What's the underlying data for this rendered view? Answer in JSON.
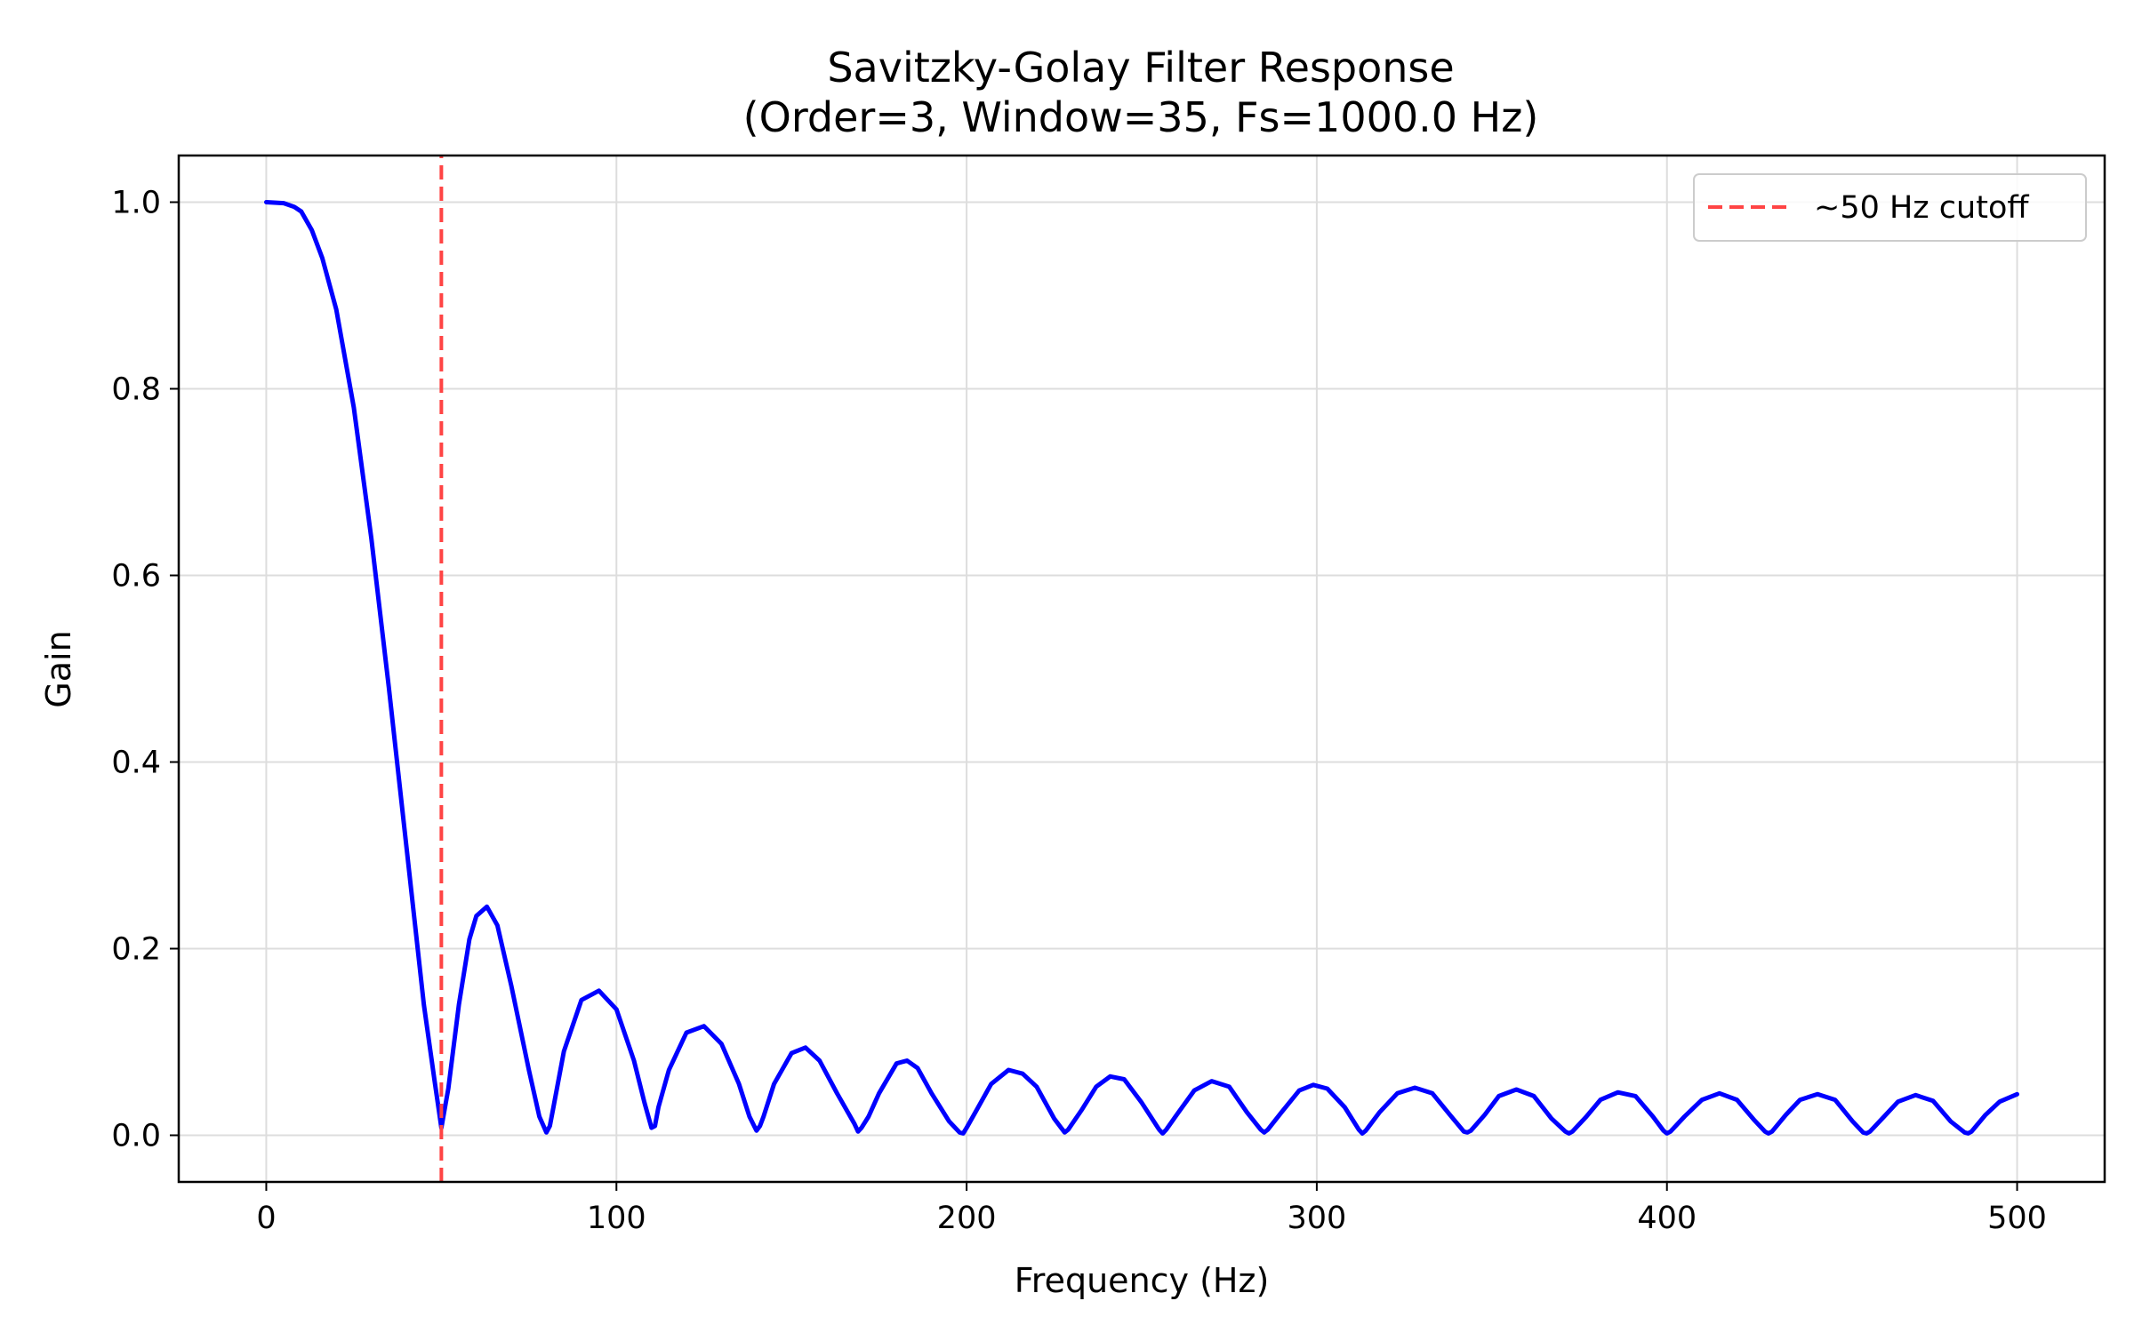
{
  "chart_data": {
    "type": "line",
    "title": "Savitzky-Golay Filter Response",
    "subtitle": "(Order=3, Window=35, Fs=1000.0 Hz)",
    "xlabel": "Frequency (Hz)",
    "ylabel": "Gain",
    "xlim": [
      -25,
      525
    ],
    "ylim": [
      -0.05,
      1.05
    ],
    "xticks": [
      0,
      100,
      200,
      300,
      400,
      500
    ],
    "xtick_labels": [
      "0",
      "100",
      "200",
      "300",
      "400",
      "500"
    ],
    "yticks": [
      0.0,
      0.2,
      0.4,
      0.6,
      0.8,
      1.0
    ],
    "ytick_labels": [
      "0.0",
      "0.2",
      "0.4",
      "0.6",
      "0.8",
      "1.0"
    ],
    "grid": true,
    "legend_position": "top-right",
    "series": [
      {
        "color": "#0000ff",
        "style": "solid",
        "x": [
          0,
          5,
          8,
          10,
          13,
          16,
          20,
          25,
          30,
          35,
          40,
          45,
          48,
          50,
          52,
          55,
          58,
          60,
          63,
          66,
          70,
          75,
          78,
          80,
          81,
          82,
          85,
          90,
          95,
          100,
          105,
          108,
          110,
          111,
          112,
          115,
          120,
          125,
          130,
          135,
          138,
          140,
          141,
          142,
          145,
          150,
          154,
          158,
          163,
          168,
          169,
          170,
          172,
          175,
          180,
          183,
          186,
          190,
          195,
          198,
          199,
          200,
          203,
          207,
          212,
          216,
          220,
          225,
          227,
          228,
          229,
          233,
          237,
          241,
          245,
          250,
          255,
          256,
          257,
          260,
          265,
          270,
          275,
          280,
          284,
          285,
          286,
          290,
          295,
          299,
          303,
          308,
          312,
          313,
          314,
          318,
          323,
          328,
          333,
          338,
          342,
          343,
          344,
          348,
          352,
          357,
          362,
          367,
          371,
          372,
          373,
          377,
          381,
          386,
          391,
          396,
          399,
          400,
          401,
          405,
          410,
          415,
          420,
          425,
          428,
          429,
          430,
          434,
          438,
          443,
          448,
          453,
          456,
          457,
          458,
          462,
          466,
          471,
          476,
          481,
          485,
          486,
          487,
          491,
          495,
          500
        ],
        "y": [
          1.0,
          0.999,
          0.995,
          0.99,
          0.97,
          0.94,
          0.885,
          0.78,
          0.64,
          0.48,
          0.31,
          0.14,
          0.06,
          0.008,
          0.05,
          0.14,
          0.21,
          0.235,
          0.245,
          0.225,
          0.16,
          0.07,
          0.02,
          0.003,
          0.01,
          0.03,
          0.09,
          0.145,
          0.155,
          0.135,
          0.08,
          0.035,
          0.008,
          0.01,
          0.03,
          0.07,
          0.11,
          0.117,
          0.098,
          0.055,
          0.02,
          0.005,
          0.01,
          0.02,
          0.055,
          0.088,
          0.094,
          0.08,
          0.045,
          0.012,
          0.004,
          0.008,
          0.02,
          0.045,
          0.077,
          0.08,
          0.072,
          0.045,
          0.015,
          0.003,
          0.002,
          0.008,
          0.028,
          0.055,
          0.07,
          0.066,
          0.052,
          0.018,
          0.008,
          0.003,
          0.006,
          0.028,
          0.052,
          0.063,
          0.06,
          0.035,
          0.006,
          0.002,
          0.006,
          0.022,
          0.048,
          0.058,
          0.052,
          0.025,
          0.006,
          0.003,
          0.006,
          0.025,
          0.048,
          0.054,
          0.05,
          0.03,
          0.006,
          0.002,
          0.005,
          0.025,
          0.045,
          0.051,
          0.045,
          0.022,
          0.004,
          0.003,
          0.005,
          0.022,
          0.042,
          0.049,
          0.042,
          0.018,
          0.004,
          0.002,
          0.004,
          0.02,
          0.038,
          0.046,
          0.042,
          0.02,
          0.005,
          0.002,
          0.004,
          0.02,
          0.038,
          0.045,
          0.038,
          0.016,
          0.004,
          0.002,
          0.004,
          0.022,
          0.038,
          0.044,
          0.038,
          0.015,
          0.003,
          0.002,
          0.004,
          0.02,
          0.036,
          0.043,
          0.037,
          0.015,
          0.003,
          0.002,
          0.004,
          0.022,
          0.036,
          0.044
        ]
      },
      {
        "name": "~50 Hz cutoff",
        "color": "#ff4444",
        "style": "dashed",
        "x": [
          50,
          50
        ],
        "y": [
          -0.05,
          1.05
        ]
      }
    ]
  }
}
